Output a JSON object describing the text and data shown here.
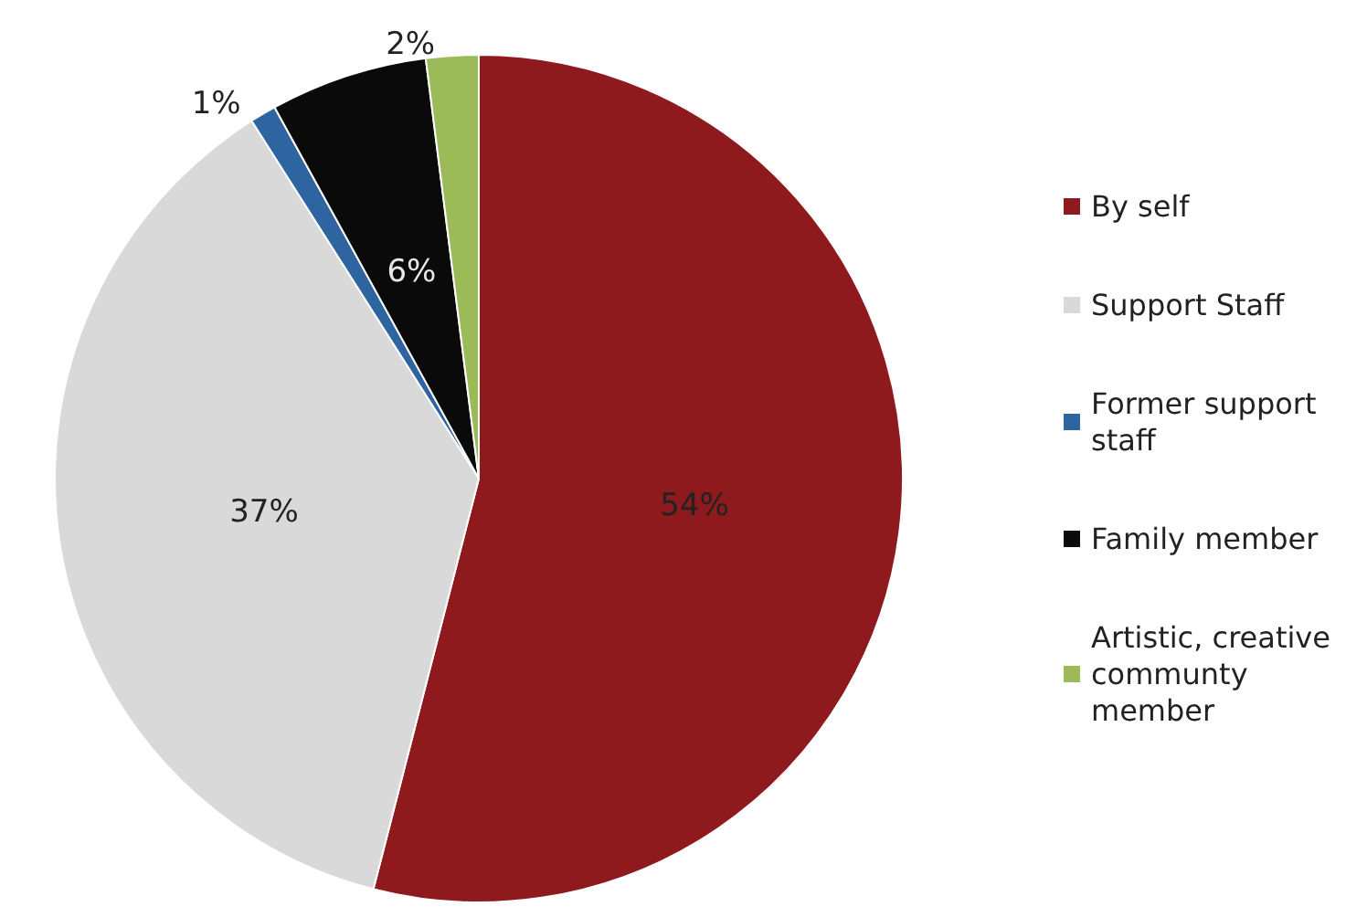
{
  "chart_data": {
    "type": "pie",
    "categories": [
      "By self",
      "Support Staff",
      "Former support staff",
      "Family member",
      "Artistic, creative communty member"
    ],
    "values": [
      54,
      37,
      1,
      6,
      2
    ],
    "value_labels": [
      "54%",
      "37%",
      "1%",
      "6%",
      "2%"
    ],
    "colors": [
      "#8e1a1e",
      "#d9d9d9",
      "#2e64a0",
      "#0a0a0a",
      "#9bbb59"
    ],
    "legend": "right"
  }
}
